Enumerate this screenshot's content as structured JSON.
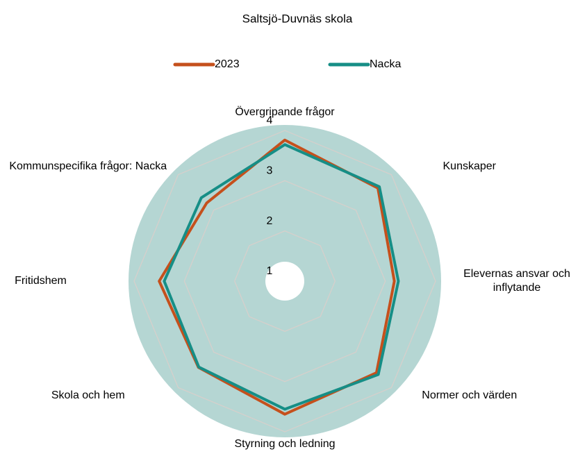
{
  "chart_data": {
    "type": "radar",
    "title": "Saltsjö-Duvnäs skola",
    "categories": [
      "Övergripande frågor",
      "Kunskaper",
      "Elevernas ansvar och inflytande",
      "Normer och värden",
      "Styrning och ledning",
      "Skola och hem",
      "Fritidshem",
      "Kommunspecifika frågor: Nacka"
    ],
    "series": [
      {
        "name": "2023",
        "color": "#c5501c",
        "values": [
          3.81,
          3.62,
          3.18,
          3.58,
          3.65,
          3.43,
          3.5,
          3.2
        ]
      },
      {
        "name": "Nacka",
        "color": "#168e86",
        "values": [
          3.72,
          3.66,
          3.26,
          3.63,
          3.55,
          3.42,
          3.4,
          3.35
        ]
      }
    ],
    "ylim": [
      1,
      4
    ],
    "yticks": [
      1,
      2,
      3,
      4
    ],
    "grid": true,
    "legend": "top"
  }
}
